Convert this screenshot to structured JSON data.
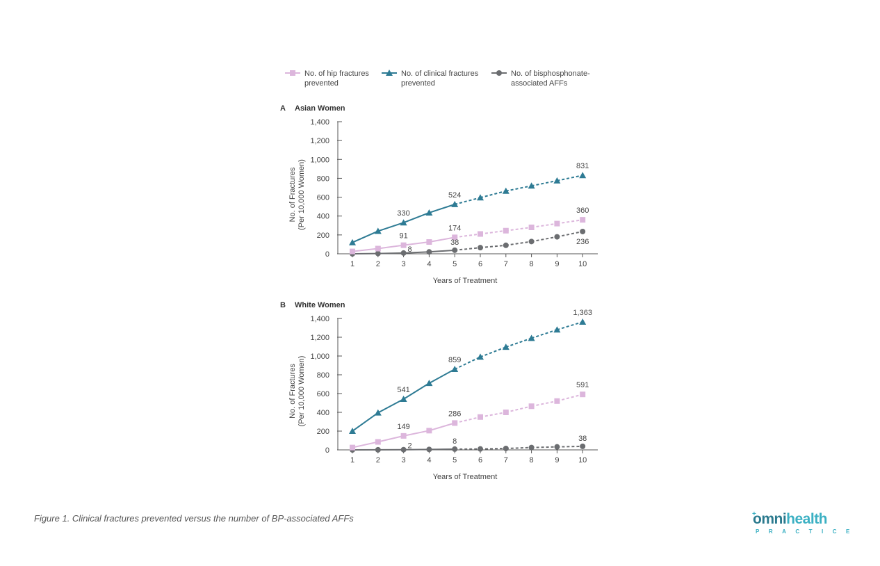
{
  "legend": {
    "hip": [
      "No. of hip fractures",
      "prevented"
    ],
    "clinical": [
      "No. of clinical fractures",
      "prevented"
    ],
    "aff": [
      "No. of bisphosphonate-",
      "associated AFFs"
    ]
  },
  "colors": {
    "hip": "#dcb6dc",
    "clinical": "#2e7b94",
    "aff": "#6b6d70",
    "axis": "#555555"
  },
  "chart_data": [
    {
      "type": "line",
      "panel": "A",
      "title": "Asian Women",
      "xlabel": "Years of Treatment",
      "ylabel": [
        "No. of Fractures",
        "(Per 10,000 Women)"
      ],
      "x": [
        1,
        2,
        3,
        4,
        5,
        6,
        7,
        8,
        9,
        10
      ],
      "ylim": [
        0,
        1400
      ],
      "yticks": [
        0,
        200,
        400,
        600,
        800,
        1000,
        1200,
        1400
      ],
      "ytick_labels": [
        "0",
        "200",
        "400",
        "600",
        "800",
        "1,000",
        "1,200",
        "1,400"
      ],
      "series": [
        {
          "key": "clinical",
          "name": "No. of clinical fractures prevented",
          "marker": "triangle",
          "values": [
            120,
            240,
            330,
            435,
            524,
            595,
            665,
            720,
            775,
            831
          ]
        },
        {
          "key": "hip",
          "name": "No. of hip fractures prevented",
          "marker": "square",
          "values": [
            25,
            55,
            91,
            125,
            174,
            210,
            245,
            280,
            320,
            360
          ]
        },
        {
          "key": "aff",
          "name": "No. of bisphosphonate-associated AFFs",
          "marker": "circle",
          "values": [
            0,
            3,
            8,
            20,
            38,
            65,
            90,
            130,
            180,
            236
          ]
        }
      ],
      "solid_until_x": 5,
      "data_labels": [
        {
          "series": "clinical",
          "x": 3,
          "text": "330"
        },
        {
          "series": "clinical",
          "x": 5,
          "text": "524"
        },
        {
          "series": "clinical",
          "x": 10,
          "text": "831"
        },
        {
          "series": "hip",
          "x": 3,
          "text": "91"
        },
        {
          "series": "hip",
          "x": 5,
          "text": "174"
        },
        {
          "series": "hip",
          "x": 10,
          "text": "360"
        },
        {
          "series": "aff",
          "x": 3,
          "text": "8"
        },
        {
          "series": "aff",
          "x": 5,
          "text": "38"
        },
        {
          "series": "aff",
          "x": 10,
          "text": "236"
        }
      ]
    },
    {
      "type": "line",
      "panel": "B",
      "title": "White Women",
      "xlabel": "Years of Treatment",
      "ylabel": [
        "No. of Fractures",
        "(Per 10,000 Women)"
      ],
      "x": [
        1,
        2,
        3,
        4,
        5,
        6,
        7,
        8,
        9,
        10
      ],
      "ylim": [
        0,
        1400
      ],
      "yticks": [
        0,
        200,
        400,
        600,
        800,
        1000,
        1200,
        1400
      ],
      "ytick_labels": [
        "0",
        "200",
        "400",
        "600",
        "800",
        "1,000",
        "1,200",
        "1,400"
      ],
      "series": [
        {
          "key": "clinical",
          "name": "No. of clinical fractures prevented",
          "marker": "triangle",
          "values": [
            200,
            395,
            541,
            710,
            859,
            990,
            1095,
            1190,
            1280,
            1363
          ]
        },
        {
          "key": "hip",
          "name": "No. of hip fractures prevented",
          "marker": "square",
          "values": [
            25,
            85,
            149,
            205,
            286,
            350,
            400,
            465,
            520,
            591
          ]
        },
        {
          "key": "aff",
          "name": "No. of bisphosphonate-associated AFFs",
          "marker": "circle",
          "values": [
            0,
            1,
            2,
            5,
            8,
            10,
            15,
            25,
            32,
            38
          ]
        }
      ],
      "solid_until_x": 5,
      "data_labels": [
        {
          "series": "clinical",
          "x": 3,
          "text": "541"
        },
        {
          "series": "clinical",
          "x": 5,
          "text": "859"
        },
        {
          "series": "clinical",
          "x": 10,
          "text": "1,363"
        },
        {
          "series": "hip",
          "x": 3,
          "text": "149"
        },
        {
          "series": "hip",
          "x": 5,
          "text": "286"
        },
        {
          "series": "hip",
          "x": 10,
          "text": "591"
        },
        {
          "series": "aff",
          "x": 3,
          "text": "2"
        },
        {
          "series": "aff",
          "x": 5,
          "text": "8"
        },
        {
          "series": "aff",
          "x": 10,
          "text": "38"
        }
      ]
    }
  ],
  "caption": "Figure 1. Clinical fractures prevented versus the number of BP-associated AFFs",
  "logo": {
    "part1": "omni",
    "part2": "health",
    "sub": "PRACTICE",
    "icon": "plus-icon"
  }
}
